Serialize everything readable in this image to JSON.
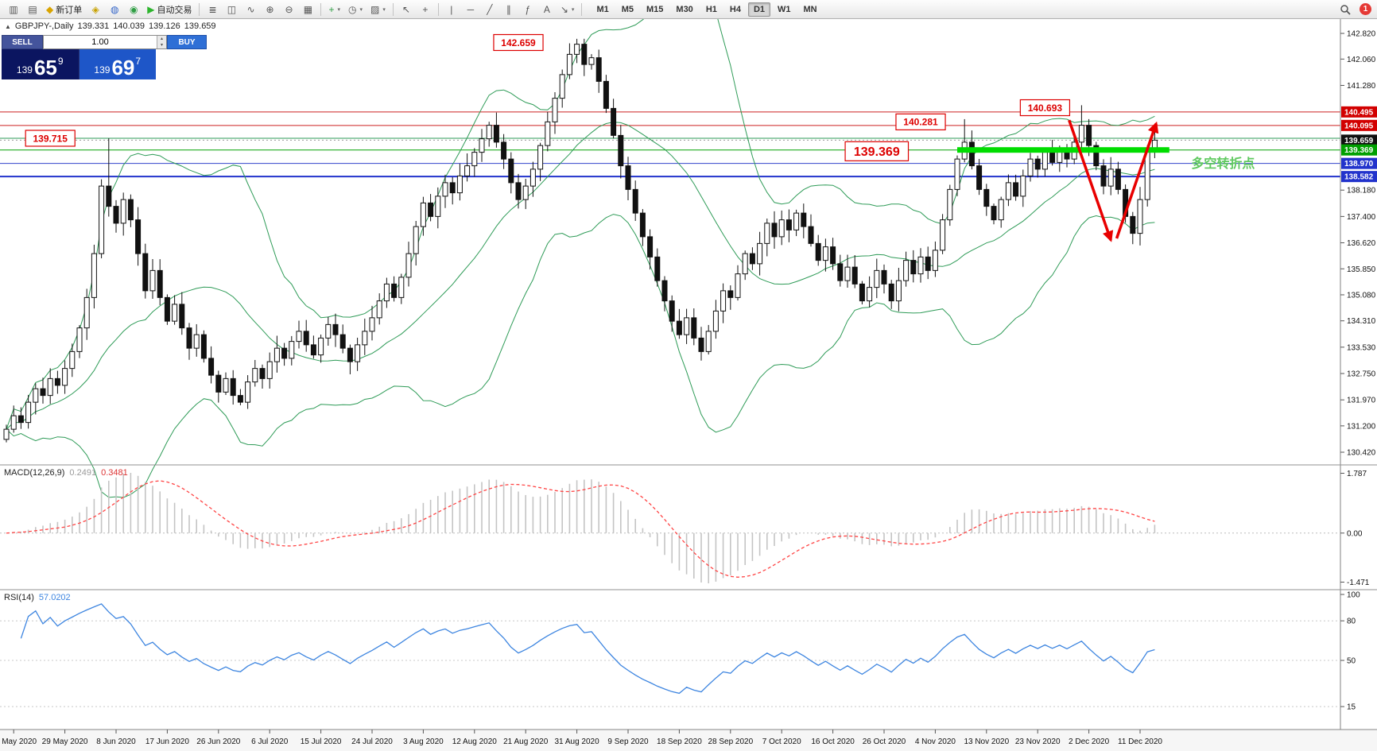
{
  "app": {
    "badge_count": "1"
  },
  "toolbar": {
    "caret_glyph": "▾",
    "buttons": [
      {
        "name": "new-order-window-icon",
        "glyph": "▥"
      },
      {
        "name": "chart-window-icon",
        "glyph": "▤"
      },
      {
        "name": "new-order-button",
        "glyph": "◆",
        "glyph_color": "#d9a400",
        "label": "新订单"
      },
      {
        "name": "market-watch-icon",
        "glyph": "◈",
        "glyph_color": "#c8a202"
      },
      {
        "name": "data-window-icon",
        "glyph": "◍",
        "glyph_color": "#3465c8"
      },
      {
        "name": "navigator-icon",
        "glyph": "◉",
        "glyph_color": "#2f9e44"
      },
      {
        "name": "autotrading-button",
        "glyph": "▶",
        "glyph_color": "#2db52d",
        "label": "自动交易"
      },
      {
        "sep": true
      },
      {
        "name": "bar-chart-icon",
        "glyph": "≣"
      },
      {
        "name": "candlestick-chart-icon",
        "glyph": "◫"
      },
      {
        "name": "line-chart-icon",
        "glyph": "∿"
      },
      {
        "name": "zoom-in-icon",
        "glyph": "⊕"
      },
      {
        "name": "zoom-out-icon",
        "glyph": "⊖"
      },
      {
        "name": "tile-windows-icon",
        "glyph": "▦"
      },
      {
        "sep": true
      },
      {
        "name": "indicators-icon",
        "glyph": "+",
        "glyph_color": "#2f9e44",
        "caret": true
      },
      {
        "name": "periods-icon",
        "glyph": "◷",
        "caret": true
      },
      {
        "name": "templates-icon",
        "glyph": "▨",
        "caret": true
      },
      {
        "sep": true
      },
      {
        "name": "cursor-icon",
        "glyph": "↖"
      },
      {
        "name": "crosshair-icon",
        "glyph": "+"
      },
      {
        "sep": true
      },
      {
        "name": "vertical-line-icon",
        "glyph": "|"
      },
      {
        "name": "horizontal-line-icon",
        "glyph": "─"
      },
      {
        "name": "trendline-icon",
        "glyph": "╱"
      },
      {
        "name": "channel-icon",
        "glyph": "∥"
      },
      {
        "name": "fibonacci-icon",
        "glyph": "ƒ"
      },
      {
        "name": "text-icon",
        "glyph": "A"
      },
      {
        "name": "arrows-icon",
        "glyph": "↘",
        "caret": true
      },
      {
        "sep": true
      }
    ],
    "timeframes": [
      "M1",
      "M5",
      "M15",
      "M30",
      "H1",
      "H4",
      "D1",
      "W1",
      "MN"
    ],
    "active_timeframe": "D1"
  },
  "symbol_info": {
    "collapse_glyph": "▲",
    "title": "GBPJPY-,Daily",
    "open": "139.331",
    "high": "140.039",
    "low": "139.126",
    "close": "139.659"
  },
  "one_click": {
    "sell_label": "SELL",
    "buy_label": "BUY",
    "volume": "1.00",
    "spin_up": "▴",
    "spin_down": "▾",
    "sell_price": {
      "prefix": "139",
      "big": "65",
      "sup": "9"
    },
    "buy_price": {
      "prefix": "139",
      "big": "69",
      "sup": "7"
    }
  },
  "macd_panel": {
    "label": "MACD(12,26,9)",
    "value_main": "0.2491",
    "value_signal": "0.3481",
    "axis_labels": [
      "1.787",
      "0.00",
      "-1.471"
    ]
  },
  "rsi_panel": {
    "label": "RSI(14)",
    "value": "57.0202",
    "axis_labels": [
      "100",
      "80",
      "50",
      "15"
    ],
    "axis_values": [
      100,
      80,
      50,
      15
    ],
    "levels": [
      80,
      50,
      15
    ]
  },
  "chart_data": {
    "type": "candlestick",
    "symbol": "GBPJPY-",
    "timeframe": "Daily",
    "dates": [
      "20 May 2020",
      "29 May 2020",
      "8 Jun 2020",
      "17 Jun 2020",
      "26 Jun 2020",
      "6 Jul 2020",
      "15 Jul 2020",
      "24 Jul 2020",
      "3 Aug 2020",
      "12 Aug 2020",
      "21 Aug 2020",
      "31 Aug 2020",
      "9 Sep 2020",
      "18 Sep 2020",
      "28 Sep 2020",
      "7 Oct 2020",
      "16 Oct 2020",
      "26 Oct 2020",
      "4 Nov 2020",
      "13 Nov 2020",
      "23 Nov 2020",
      "2 Dec 2020",
      "11 Dec 2020"
    ],
    "first_tick_candle_index": 1,
    "tick_spacing_candles": 7,
    "closes": [
      131.1,
      131.5,
      131.3,
      131.9,
      132.3,
      132.1,
      132.6,
      132.4,
      132.9,
      133.4,
      134.1,
      135.0,
      136.3,
      138.3,
      137.7,
      137.2,
      137.9,
      137.3,
      136.3,
      135.2,
      135.8,
      135.0,
      134.3,
      134.8,
      134.1,
      133.5,
      133.9,
      133.2,
      132.7,
      132.2,
      132.6,
      132.1,
      131.9,
      132.5,
      132.9,
      132.6,
      133.1,
      133.5,
      133.2,
      133.7,
      134.0,
      133.6,
      133.3,
      133.8,
      134.2,
      133.9,
      133.5,
      133.1,
      133.6,
      134.0,
      134.4,
      134.9,
      135.4,
      135.0,
      135.6,
      136.3,
      137.1,
      137.8,
      137.4,
      138.0,
      138.4,
      138.1,
      138.6,
      138.9,
      139.3,
      139.7,
      140.1,
      139.6,
      139.1,
      138.4,
      137.9,
      138.3,
      138.8,
      139.5,
      140.2,
      140.9,
      141.6,
      142.2,
      142.5,
      141.9,
      142.1,
      141.4,
      140.6,
      139.8,
      138.9,
      138.2,
      137.5,
      136.8,
      136.2,
      135.5,
      134.9,
      134.3,
      133.9,
      134.4,
      133.8,
      133.4,
      134.0,
      134.6,
      135.2,
      135.0,
      135.7,
      136.3,
      136.0,
      136.6,
      137.2,
      136.8,
      137.3,
      137.0,
      137.5,
      137.1,
      136.6,
      136.1,
      136.5,
      136.0,
      135.5,
      135.9,
      135.4,
      134.9,
      135.3,
      135.8,
      135.4,
      134.9,
      135.5,
      136.1,
      135.7,
      136.2,
      135.8,
      136.4,
      137.3,
      138.2,
      139.1,
      139.6,
      138.9,
      138.2,
      137.7,
      137.3,
      137.9,
      138.4,
      138.0,
      138.6,
      139.1,
      138.8,
      139.3,
      139.0,
      139.4,
      139.1,
      139.6,
      140.1,
      139.5,
      138.9,
      138.3,
      138.8,
      138.2,
      137.4,
      136.9,
      137.9,
      139.33,
      139.659
    ],
    "key_highs": {
      "14": 139.715,
      "78": 142.659,
      "131": 140.281,
      "147": 140.693,
      "157": 140.039
    },
    "key_lows": {
      "154": 136.58,
      "157": 139.126
    },
    "last_ohlc": {
      "open": 139.331,
      "high": 140.039,
      "low": 139.126,
      "close": 139.659
    },
    "price_axis_labels": [
      "142.820",
      "142.060",
      "141.280",
      "138.180",
      "137.400",
      "136.620",
      "135.850",
      "135.080",
      "134.310",
      "133.530",
      "132.750",
      "131.970",
      "131.200",
      "130.420"
    ],
    "price_tags": [
      {
        "text": "140.495",
        "price": 140.495,
        "bg": "#d20000"
      },
      {
        "text": "140.095",
        "price": 140.095,
        "bg": "#d20000"
      },
      {
        "text": "139.659",
        "price": 139.659,
        "bg": "#101010"
      },
      {
        "text": "139.369",
        "price": 139.369,
        "bg": "#00a000"
      },
      {
        "text": "138.970",
        "price": 138.97,
        "bg": "#2233cc"
      },
      {
        "text": "138.582",
        "price": 138.582,
        "bg": "#2233cc"
      }
    ],
    "hlines": [
      {
        "price": 140.495,
        "color": "#cc2222",
        "width": 1
      },
      {
        "price": 140.095,
        "color": "#cc2222",
        "width": 1
      },
      {
        "price": 139.715,
        "color": "#2E9B57",
        "width": 1
      },
      {
        "price": 139.659,
        "color": "#999999",
        "width": 1,
        "dash": "2,3"
      },
      {
        "price": 139.369,
        "color": "#00a000",
        "width": 1
      },
      {
        "price": 138.97,
        "color": "#3344cc",
        "width": 1
      },
      {
        "price": 138.582,
        "color": "#2233cc",
        "width": 2
      }
    ],
    "callouts": [
      {
        "text": "142.659",
        "idx": 70,
        "price": 142.55,
        "size": 12
      },
      {
        "text": "139.715",
        "idx": 6,
        "price": 139.715,
        "size": 12
      },
      {
        "text": "140.281",
        "idx": 125,
        "price": 140.2,
        "size": 12
      },
      {
        "text": "140.693",
        "idx": 142,
        "price": 140.62,
        "size": 12
      },
      {
        "text": "139.369",
        "idx": 119,
        "price": 139.33,
        "size": 16
      }
    ],
    "support_bar": {
      "price": 139.369,
      "from_idx": 130,
      "to_idx": 159,
      "color": "#00dd00",
      "thickness": 7
    },
    "trend_arrows": {
      "color": "#e80000",
      "segments": [
        {
          "from_idx": 145.3,
          "from_price": 140.25,
          "to_idx": 151.0,
          "to_price": 136.7
        },
        {
          "from_idx": 151.8,
          "from_price": 136.75,
          "to_idx": 157.2,
          "to_price": 140.15
        }
      ]
    },
    "annotation_note": {
      "text": "多空转折点",
      "idx": 162,
      "price": 138.85,
      "color": "#5fc95f",
      "size": 16
    },
    "indicators": {
      "bollinger": {
        "period": 20,
        "deviations": 2,
        "color": "#2E9B57"
      },
      "macd": {
        "fast": 12,
        "slow": 26,
        "signal": 9
      },
      "rsi": {
        "period": 14,
        "color": "#3d85e0"
      }
    }
  }
}
